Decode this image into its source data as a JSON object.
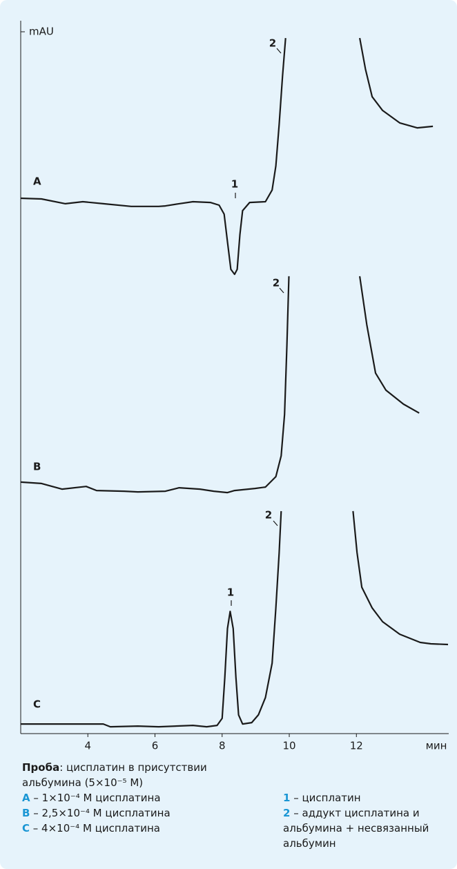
{
  "chart_data": {
    "type": "line",
    "x_label": "мин",
    "y_label": "mAU",
    "xlim": [
      2,
      14.75
    ],
    "xticks": [
      4,
      6,
      8,
      10,
      12
    ],
    "ylim": [
      0,
      100
    ],
    "color": "#1a1a1a",
    "series": [
      {
        "name": "A",
        "peaks": [
          "1",
          "2"
        ],
        "x": [
          2.0,
          2.62,
          3.33,
          3.85,
          4.46,
          5.29,
          6.11,
          6.31,
          6.72,
          7.13,
          7.65,
          7.91,
          8.06,
          8.16,
          8.26,
          8.37,
          8.45,
          8.53,
          8.61,
          8.82,
          9.29,
          9.49,
          9.6,
          9.7,
          9.8,
          9.89,
          11.0,
          12.1,
          12.27,
          12.47,
          12.78,
          13.29,
          13.81,
          14.28
        ],
        "values": [
          31.4,
          31.1,
          29.2,
          30.0,
          29.2,
          28.1,
          28.1,
          28.3,
          29.2,
          30.0,
          29.7,
          28.6,
          25.0,
          13.9,
          2.8,
          0.8,
          2.8,
          16.7,
          26.4,
          29.7,
          30.0,
          34.7,
          44.4,
          61.1,
          80.6,
          95.8,
          null,
          95.8,
          83.3,
          72.2,
          66.7,
          61.7,
          59.7,
          60.3
        ]
      },
      {
        "name": "B",
        "peaks": [
          "2"
        ],
        "x": [
          2.0,
          2.62,
          3.23,
          3.95,
          4.26,
          5.08,
          5.49,
          6.31,
          6.72,
          7.34,
          7.75,
          8.16,
          8.37,
          8.98,
          9.29,
          9.6,
          9.76,
          9.86,
          9.93,
          9.99,
          11.0,
          12.1,
          12.31,
          12.57,
          12.88,
          13.4,
          13.87
        ],
        "values": [
          6.7,
          6.1,
          3.6,
          4.8,
          3.0,
          2.7,
          2.4,
          2.7,
          4.2,
          3.6,
          2.7,
          2.1,
          3.0,
          3.9,
          4.5,
          9.1,
          18.2,
          36.4,
          66.7,
          97.0,
          null,
          97.0,
          75.8,
          54.5,
          47.0,
          40.9,
          37.0
        ]
      },
      {
        "name": "C",
        "peaks": [
          "1",
          "2"
        ],
        "x": [
          2.0,
          4.46,
          4.67,
          5.49,
          6.11,
          7.13,
          7.54,
          7.85,
          8.0,
          8.08,
          8.16,
          8.24,
          8.33,
          8.41,
          8.49,
          8.61,
          8.88,
          9.08,
          9.29,
          9.49,
          9.6,
          9.7,
          9.76,
          11.0,
          11.9,
          12.02,
          12.16,
          12.47,
          12.78,
          13.29,
          13.9,
          14.22,
          14.73
        ],
        "values": [
          3.6,
          3.6,
          2.4,
          2.7,
          2.4,
          3.0,
          2.4,
          3.0,
          6.1,
          24.2,
          45.5,
          53.0,
          45.5,
          24.2,
          7.6,
          3.6,
          4.2,
          7.6,
          15.2,
          30.3,
          54.5,
          78.8,
          97.0,
          null,
          97.0,
          78.8,
          63.6,
          54.5,
          48.5,
          43.0,
          39.4,
          38.8,
          38.5
        ]
      }
    ]
  },
  "caption": {
    "left": [
      {
        "key": "Проба",
        "text": ": цисплатин в присутствии альбумина (5×10⁻⁵ М)"
      },
      {
        "key": "A",
        "text": " – 1×10⁻⁴ М цисплатина"
      },
      {
        "key": "B",
        "text": " – 2,5×10⁻⁴ М цисплатина"
      },
      {
        "key": "C",
        "text": " – 4×10⁻⁴ М цисплатина"
      }
    ],
    "right": [
      {
        "key": "1",
        "text": " – цисплатин"
      },
      {
        "key": "2",
        "text": " – аддукт цисплатина и альбумина + несвязанный альбумин"
      }
    ]
  }
}
